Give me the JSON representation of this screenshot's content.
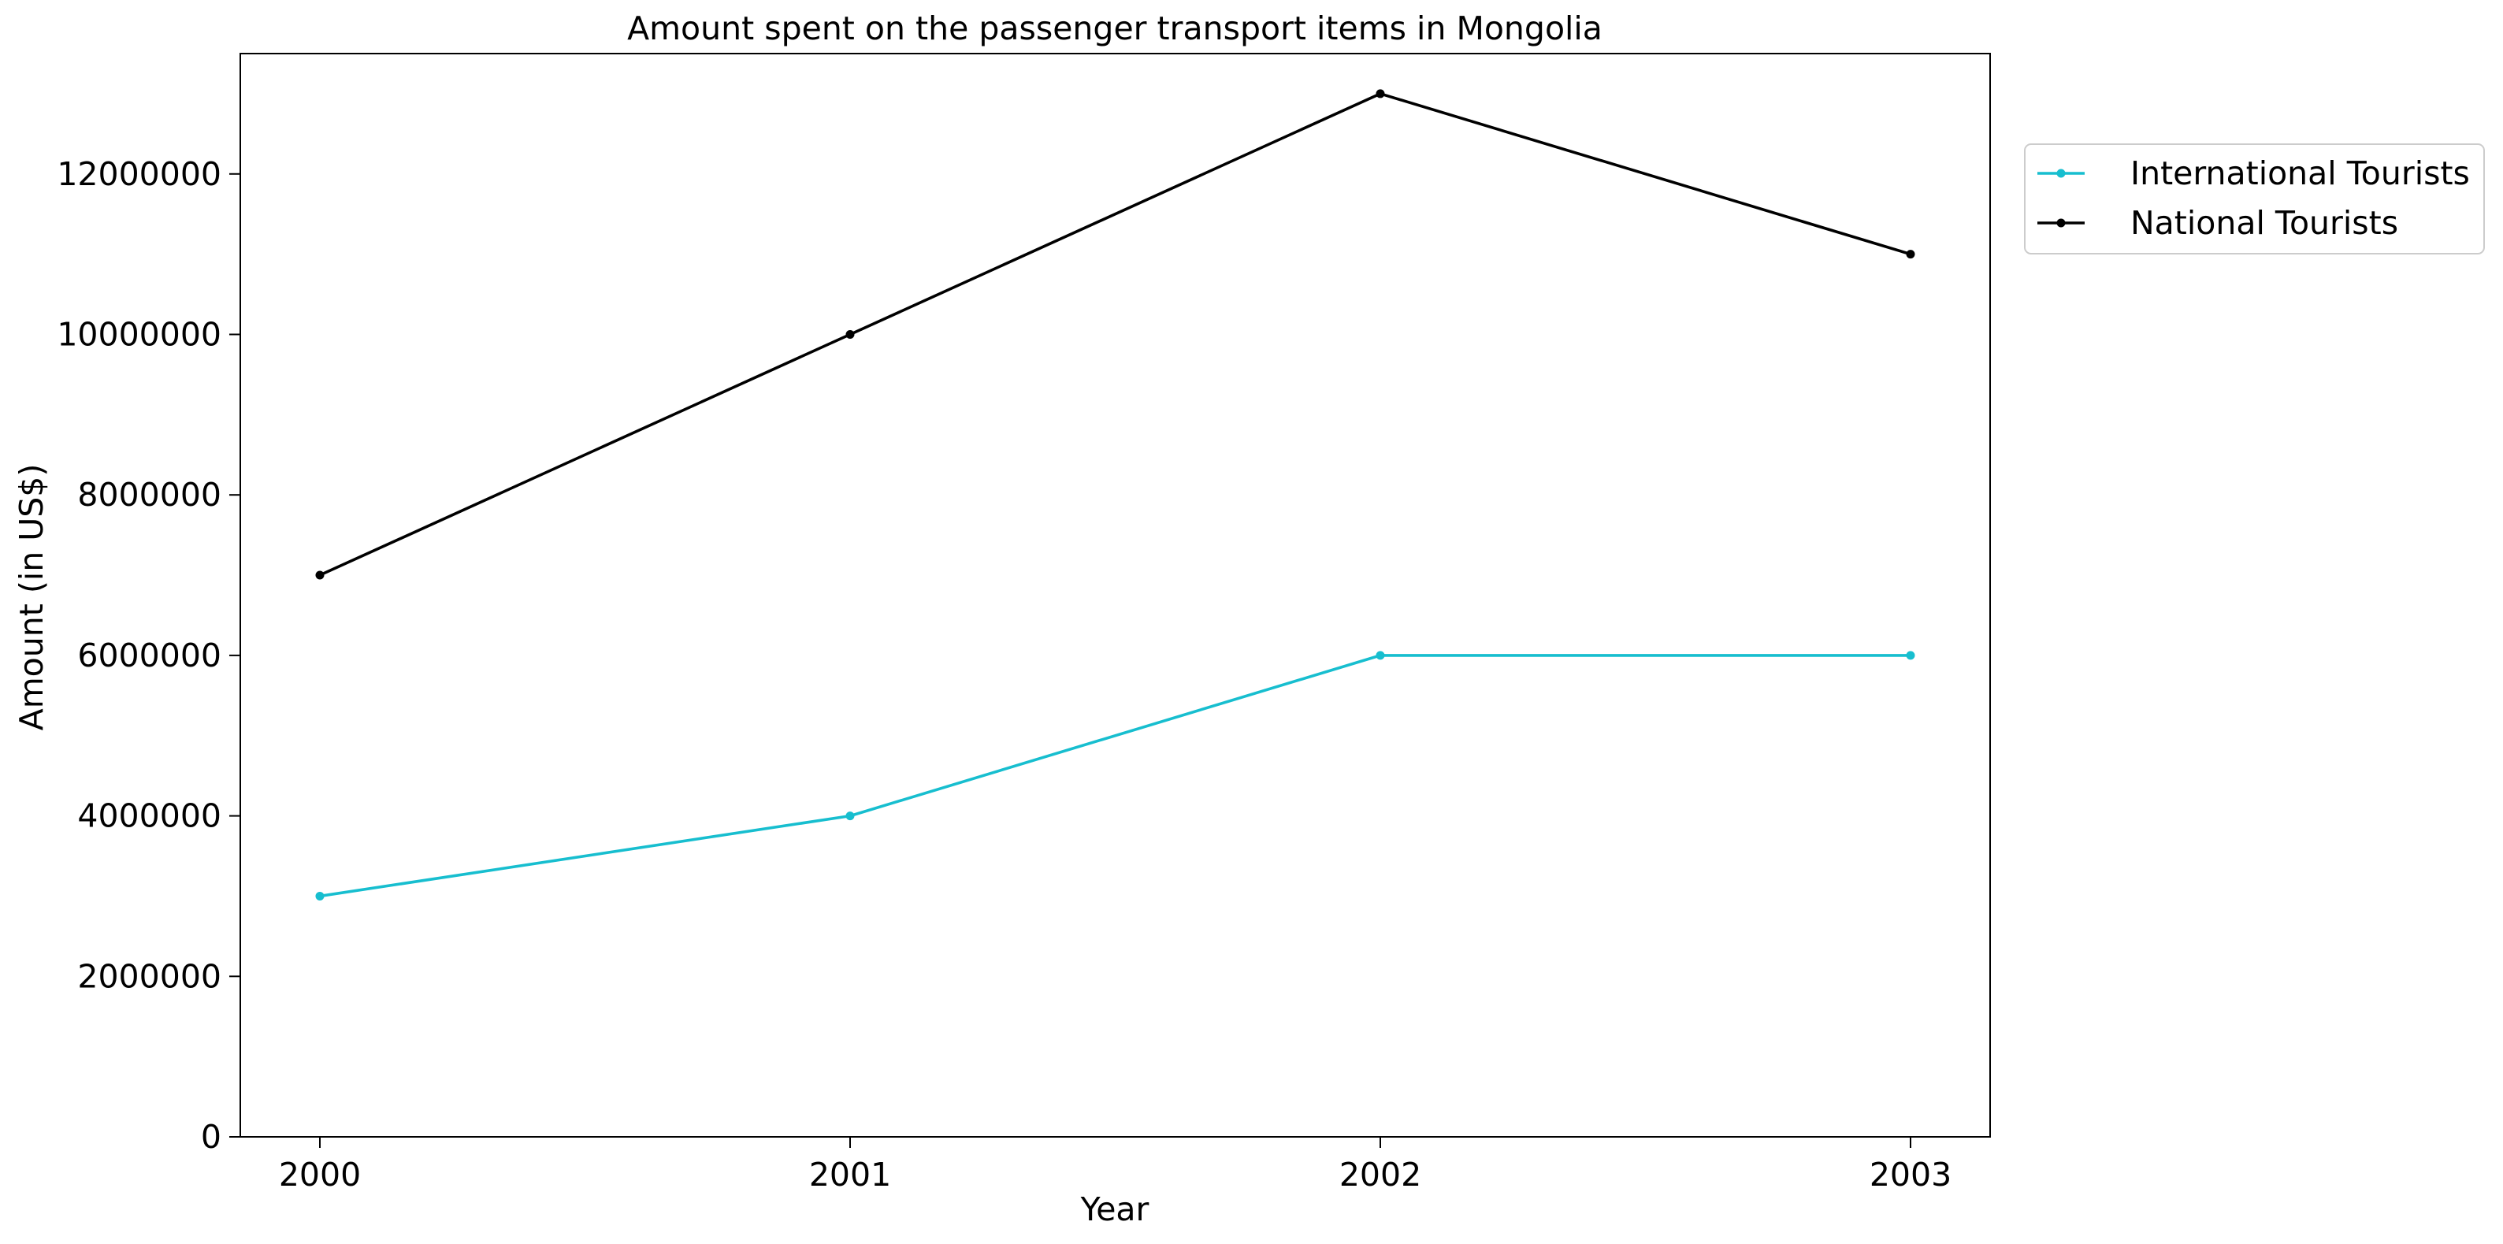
{
  "chart_data": {
    "type": "line",
    "title": "Amount spent on the passenger transport items in Mongolia",
    "xlabel": "Year",
    "ylabel": "Amount (in US$)",
    "categories": [
      "2000",
      "2001",
      "2002",
      "2003"
    ],
    "ylim": [
      0,
      13500000
    ],
    "yticks": [
      0,
      2000000,
      4000000,
      6000000,
      8000000,
      10000000,
      12000000
    ],
    "ytick_labels": [
      "0",
      "2000000",
      "4000000",
      "6000000",
      "8000000",
      "10000000",
      "12000000"
    ],
    "grid": false,
    "legend_position": "outside-top-right",
    "series": [
      {
        "name": "International Tourists",
        "color": "#17becf",
        "values": [
          3000000,
          4000000,
          6000000,
          6000000
        ]
      },
      {
        "name": "National Tourists",
        "color": "#000000",
        "values": [
          7000000,
          10000000,
          13000000,
          11000000
        ]
      }
    ]
  }
}
